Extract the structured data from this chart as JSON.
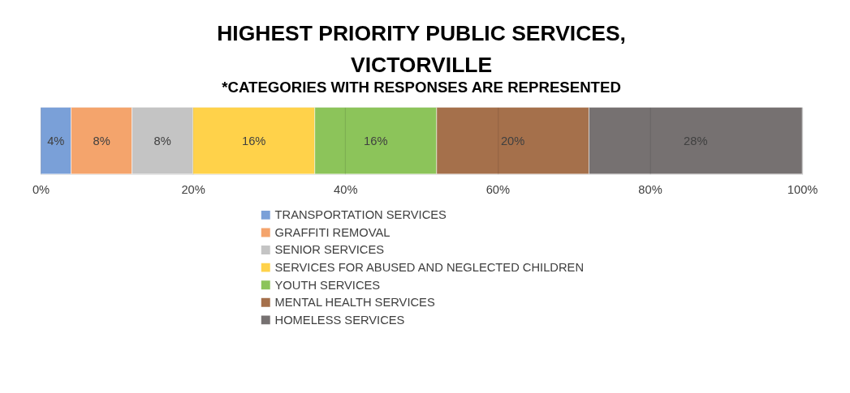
{
  "chart_data": {
    "type": "bar",
    "orientation": "horizontal",
    "stacked": true,
    "title": "HIGHEST PRIORITY PUBLIC SERVICES, VICTORVILLE",
    "subtitle": "*CATEGORIES WITH RESPONSES ARE REPRESENTED",
    "categories": [
      null
    ],
    "xlim": [
      0,
      100
    ],
    "xticks": [
      {
        "value": 0,
        "label": "0%"
      },
      {
        "value": 20,
        "label": "20%"
      },
      {
        "value": 40,
        "label": "40%"
      },
      {
        "value": 60,
        "label": "60%"
      },
      {
        "value": 80,
        "label": "80%"
      },
      {
        "value": 100,
        "label": "100%"
      }
    ],
    "grid": "x",
    "legend": "bottom",
    "series": [
      {
        "name": "TRANSPORTATION SERVICES",
        "color": "#7aa0d8",
        "values": [
          4
        ],
        "value_labels": [
          "4%"
        ]
      },
      {
        "name": "GRAFFITI REMOVAL",
        "color": "#f4a46c",
        "values": [
          8
        ],
        "value_labels": [
          "8%"
        ]
      },
      {
        "name": "SENIOR SERVICES",
        "color": "#c4c4c4",
        "values": [
          8
        ],
        "value_labels": [
          "8%"
        ]
      },
      {
        "name": "SERVICES FOR ABUSED AND NEGLECTED CHILDREN",
        "color": "#ffd24a",
        "values": [
          16
        ],
        "value_labels": [
          "16%"
        ]
      },
      {
        "name": "YOUTH SERVICES",
        "color": "#8cc45a",
        "values": [
          16
        ],
        "value_labels": [
          "16%"
        ]
      },
      {
        "name": "MENTAL HEALTH SERVICES",
        "color": "#a5704b",
        "values": [
          20
        ],
        "value_labels": [
          "20%"
        ]
      },
      {
        "name": "HOMELESS SERVICES",
        "color": "#767171",
        "values": [
          28
        ],
        "value_labels": [
          "28%"
        ]
      }
    ]
  }
}
